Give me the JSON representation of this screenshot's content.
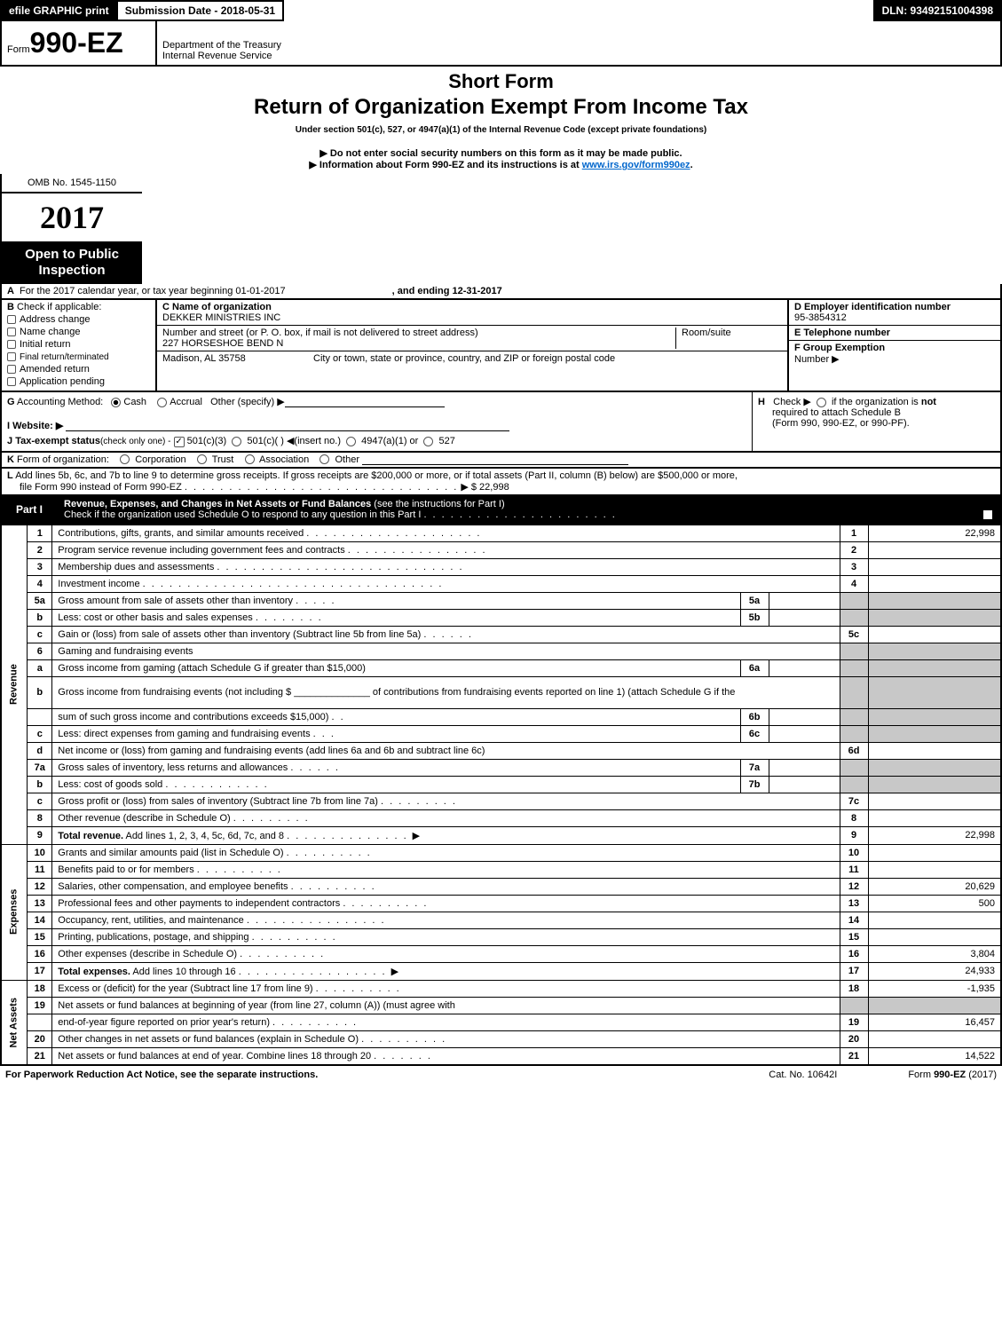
{
  "topbar": {
    "efile": "efile GRAPHIC print",
    "submission_label": "Submission Date - 2018-05-31",
    "dln_label": "DLN: 93492151004398"
  },
  "header": {
    "form_small": "Form",
    "form_number": "990-EZ",
    "dept1": "Department of the Treasury",
    "dept2": "Internal Revenue Service",
    "title1": "Short Form",
    "title2": "Return of Organization Exempt From Income Tax",
    "subtitle": "Under section 501(c), 527, or 4947(a)(1) of the Internal Revenue Code (except private foundations)",
    "note1_pre": "▶ Do not enter social security numbers on this form as it may be made public.",
    "note2_pre": "▶ Information about Form 990-EZ and its instructions is at ",
    "note2_link": "www.irs.gov/form990ez",
    "note2_post": ".",
    "omb": "OMB No. 1545-1150",
    "year": "2017",
    "open1": "Open to Public",
    "open2": "Inspection"
  },
  "lineA": {
    "letter": "A",
    "text1": "For the 2017 calendar year, or tax year beginning 01-01-2017",
    "text2": ", and ending 12-31-2017"
  },
  "boxB": {
    "letter": "B",
    "label": "Check if applicable:",
    "opts": [
      "Address change",
      "Name change",
      "Initial return",
      "Final return/terminated",
      "Amended return",
      "Application pending"
    ]
  },
  "boxC": {
    "label": "C Name of organization",
    "name": "DEKKER MINISTRIES INC",
    "addr_label": "Number and street (or P. O. box, if mail is not delivered to street address)",
    "addr": "227 HORSESHOE BEND N",
    "room_label": "Room/suite",
    "city_label": "City or town, state or province, country, and ZIP or foreign postal code",
    "city": "Madison, AL  35758"
  },
  "boxD": {
    "label": "D Employer identification number",
    "value": "95-3854312"
  },
  "boxE": {
    "label": "E Telephone number",
    "value": ""
  },
  "boxF": {
    "label": "F Group Exemption",
    "label2": "Number   ▶",
    "value": ""
  },
  "lineG": {
    "letter": "G",
    "label": "Accounting Method:",
    "cash": "Cash",
    "accrual": "Accrual",
    "other": "Other (specify) ▶"
  },
  "lineH": {
    "letter": "H",
    "text1": "Check ▶",
    "text2": "if the organization is",
    "text2b": "not",
    "text3": "required to attach Schedule B",
    "text4": "(Form 990, 990-EZ, or 990-PF)."
  },
  "lineI": {
    "letter": "I",
    "label": "Website: ▶"
  },
  "lineJ": {
    "letter": "J",
    "label": "Tax-exempt status",
    "sub": "(check only one) -",
    "o1": "501(c)(3)",
    "o2": "501(c)(  )",
    "o2b": "◀(insert no.)",
    "o3": "4947(a)(1) or",
    "o4": "527"
  },
  "lineK": {
    "letter": "K",
    "label": "Form of organization:",
    "opts": [
      "Corporation",
      "Trust",
      "Association",
      "Other"
    ]
  },
  "lineL": {
    "letter": "L",
    "text1": "Add lines 5b, 6c, and 7b to line 9 to determine gross receipts. If gross receipts are $200,000 or more, or if total assets (Part II, column (B) below) are $500,000 or more,",
    "text2": "file Form 990 instead of Form 990-EZ",
    "dots": ". . . . . . . . . . . . . . . . . . . . . . . . . . . . . . .",
    "value": "▶ $ 22,998"
  },
  "part1": {
    "tag": "Part I",
    "title": "Revenue, Expenses, and Changes in Net Assets or Fund Balances",
    "titlesub": "(see the instructions for Part I)",
    "subline": "Check if the organization used Schedule O to respond to any question in this Part I",
    "subdots": ". . . . . . . . . . . . . . . . . . . . . ."
  },
  "sections": {
    "revenue": "Revenue",
    "expenses": "Expenses",
    "netassets": "Net Assets"
  },
  "lines": [
    {
      "n": "1",
      "text": "Contributions, gifts, grants, and similar amounts received",
      "dots": ". . . . . . . . . . . . . . . . . . . .",
      "box": "1",
      "amt": "22,998",
      "sec": "rev"
    },
    {
      "n": "2",
      "text": "Program service revenue including government fees and contracts",
      "dots": ". . . . . . . . . . . . . . . .",
      "box": "2",
      "amt": "",
      "sec": "rev"
    },
    {
      "n": "3",
      "text": "Membership dues and assessments",
      "dots": ". . . . . . . . . . . . . . . . . . . . . . . . . . . .",
      "box": "3",
      "amt": "",
      "sec": "rev"
    },
    {
      "n": "4",
      "text": "Investment income",
      "dots": ". . . . . . . . . . . . . . . . . . . . . . . . . . . . . . . . . .",
      "box": "4",
      "amt": "",
      "sec": "rev"
    },
    {
      "n": "5a",
      "text": "Gross amount from sale of assets other than inventory",
      "dots": ". . . . .",
      "sub": "5a",
      "sec": "rev",
      "grey": true
    },
    {
      "n": "b",
      "text": "Less: cost or other basis and sales expenses",
      "dots": ". . . . . . . .",
      "sub": "5b",
      "sec": "rev",
      "grey": true
    },
    {
      "n": "c",
      "text": "Gain or (loss) from sale of assets other than inventory (Subtract line 5b from line 5a)",
      "dots": ".   .   .   .   .   .",
      "box": "5c",
      "amt": "",
      "sec": "rev"
    },
    {
      "n": "6",
      "text": "Gaming and fundraising events",
      "dots": "",
      "sec": "rev",
      "grey": true,
      "noamt": true
    },
    {
      "n": "a",
      "text": "Gross income from gaming (attach Schedule G if greater than $15,000)",
      "dots": "",
      "sub": "6a",
      "sec": "rev",
      "grey": true
    },
    {
      "n": "b",
      "text": "Gross income from fundraising events (not including $ ______________ of contributions from fundraising events reported on line 1) (attach Schedule G if the",
      "dots": "",
      "sec": "rev",
      "grey": true,
      "noamt": true,
      "tall": true
    },
    {
      "n": "",
      "text": "sum of such gross income and contributions exceeds $15,000)",
      "dots": ".   .",
      "sub": "6b",
      "sec": "rev",
      "grey": true
    },
    {
      "n": "c",
      "text": "Less: direct expenses from gaming and fundraising events",
      "dots": ".   .   .",
      "sub": "6c",
      "sec": "rev",
      "grey": true
    },
    {
      "n": "d",
      "text": "Net income or (loss) from gaming and fundraising events (add lines 6a and 6b and subtract line 6c)",
      "dots": "",
      "box": "6d",
      "amt": "",
      "sec": "rev"
    },
    {
      "n": "7a",
      "text": "Gross sales of inventory, less returns and allowances",
      "dots": ".   .   .   .   .   .",
      "sub": "7a",
      "sec": "rev",
      "grey": true
    },
    {
      "n": "b",
      "text": "Less: cost of goods sold",
      "dots": ".   .   .   .   .   .   .   .   .   .   .   .",
      "sub": "7b",
      "sec": "rev",
      "grey": true
    },
    {
      "n": "c",
      "text": "Gross profit or (loss) from sales of inventory (Subtract line 7b from line 7a)",
      "dots": ".   .   .   .   .   .   .   .   .",
      "box": "7c",
      "amt": "",
      "sec": "rev"
    },
    {
      "n": "8",
      "text": "Other revenue (describe in Schedule O)",
      "dots": ".   .   .   .   .   .   .   .   .",
      "box": "8",
      "amt": "",
      "sec": "rev"
    },
    {
      "n": "9",
      "textb": "Total revenue.",
      "text": " Add lines 1, 2, 3, 4, 5c, 6d, 7c, and 8",
      "dots": ".   .   .   .   .   .   .   .   .   .   .   .   .   .  ▶",
      "box": "9",
      "amt": "22,998",
      "sec": "rev"
    },
    {
      "n": "10",
      "text": "Grants and similar amounts paid (list in Schedule O)",
      "dots": ".   .   .   .   .   .   .   .   .   .",
      "box": "10",
      "amt": "",
      "sec": "exp"
    },
    {
      "n": "11",
      "text": "Benefits paid to or for members",
      "dots": ".   .   .   .   .   .   .   .   .   .",
      "box": "11",
      "amt": "",
      "sec": "exp"
    },
    {
      "n": "12",
      "text": "Salaries, other compensation, and employee benefits",
      "dots": ".   .   .   .   .   .   .   .   .   .",
      "box": "12",
      "amt": "20,629",
      "sec": "exp"
    },
    {
      "n": "13",
      "text": "Professional fees and other payments to independent contractors",
      "dots": ".   .   .   .   .   .   .   .   .   .",
      "box": "13",
      "amt": "500",
      "sec": "exp"
    },
    {
      "n": "14",
      "text": "Occupancy, rent, utilities, and maintenance",
      "dots": ".   .   .   .   .   .   .   .   .   .   .   .   .   .   .   .",
      "box": "14",
      "amt": "",
      "sec": "exp"
    },
    {
      "n": "15",
      "text": "Printing, publications, postage, and shipping",
      "dots": ".   .   .   .   .   .   .   .   .   .",
      "box": "15",
      "amt": "",
      "sec": "exp"
    },
    {
      "n": "16",
      "text": "Other expenses (describe in Schedule O)",
      "dots": ".   .   .   .   .   .   .   .   .   .",
      "box": "16",
      "amt": "3,804",
      "sec": "exp"
    },
    {
      "n": "17",
      "textb": "Total expenses.",
      "text": " Add lines 10 through 16",
      "dots": ".   .   .   .   .   .   .   .   .   .   .   .   .   .   .   .   .  ▶",
      "box": "17",
      "amt": "24,933",
      "sec": "exp"
    },
    {
      "n": "18",
      "text": "Excess or (deficit) for the year (Subtract line 17 from line 9)",
      "dots": ".   .   .   .   .   .   .   .   .   .",
      "box": "18",
      "amt": "-1,935",
      "sec": "net"
    },
    {
      "n": "19",
      "text": "Net assets or fund balances at beginning of year (from line 27, column (A)) (must agree with",
      "dots": "",
      "sec": "net",
      "grey": true,
      "noamt": true
    },
    {
      "n": "",
      "text": "end-of-year figure reported on prior year's return)",
      "dots": ".   .   .   .   .   .   .   .   .   .",
      "box": "19",
      "amt": "16,457",
      "sec": "net"
    },
    {
      "n": "20",
      "text": "Other changes in net assets or fund balances (explain in Schedule O)",
      "dots": ".   .   .   .   .   .   .   .   .   .",
      "box": "20",
      "amt": "",
      "sec": "net"
    },
    {
      "n": "21",
      "text": "Net assets or fund balances at end of year. Combine lines 18 through 20",
      "dots": ".   .   .   .   .   .   .",
      "box": "21",
      "amt": "14,522",
      "sec": "net"
    }
  ],
  "footer": {
    "left": "For Paperwork Reduction Act Notice, see the separate instructions.",
    "mid": "Cat. No. 10642I",
    "right_pre": "Form ",
    "right_b": "990-EZ",
    "right_post": " (2017)"
  },
  "colors": {
    "black": "#000000",
    "grey": "#c8c8c8",
    "link": "#0066cc"
  }
}
